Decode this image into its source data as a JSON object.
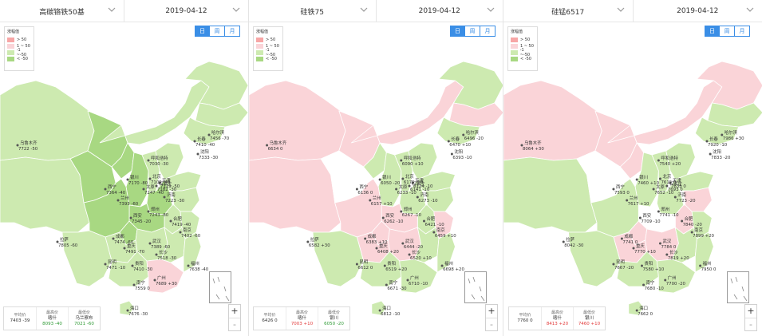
{
  "colors": {
    "gt50": "#f7a6a6",
    "p1_50": "#fad4d8",
    "n1_50": "#cdeab0",
    "lt_n50": "#a8d882",
    "none": "#ffffff",
    "accent": "#3a8ee6"
  },
  "legend": {
    "title": "涨幅值",
    "items": [
      {
        "label": "> 50",
        "color_key": "gt50"
      },
      {
        "label": "1 ~ 50",
        "color_key": "p1_50"
      },
      {
        "label": "-1 ~-50",
        "color_key": "n1_50"
      },
      {
        "label": "< -50",
        "color_key": "lt_n50"
      }
    ]
  },
  "toggle": [
    "日",
    "周",
    "月"
  ],
  "zoom": {
    "plus": "+",
    "minus": "-"
  },
  "panels": [
    {
      "product": "高碳铬铁50基",
      "date": "2019-04-12",
      "stats": {
        "avg_label": "平均价",
        "avg_value": "7403 -39",
        "high_label": "最高价",
        "high_city": "喀什",
        "high_value": "8093 -40",
        "low_label": "最低价",
        "low_value": "乌兰察布",
        "low_extra": "7021 -60"
      },
      "cities": [
        {
          "n": "乌鲁木齐",
          "v": "7722 -50"
        },
        {
          "n": "哈尔滨",
          "v": "7456 -70"
        },
        {
          "n": "长春",
          "v": "7410 -40"
        },
        {
          "n": "沈阳",
          "v": "7333 -30"
        },
        {
          "n": "呼和浩特",
          "v": "7030 -30"
        },
        {
          "n": "北京",
          "v": "7105 -40"
        },
        {
          "n": "天津",
          "v": "7119 -50"
        },
        {
          "n": "石家庄",
          "v": "7182 -30"
        },
        {
          "n": "太原",
          "v": "7247 -40"
        },
        {
          "n": "银川",
          "v": "7170 -80"
        },
        {
          "n": "西宁",
          "v": "7364 -40"
        },
        {
          "n": "兰州",
          "v": "7393 -60"
        },
        {
          "n": "济南",
          "v": "7223 -30"
        },
        {
          "n": "郑州",
          "v": "7243 -80"
        },
        {
          "n": "西安",
          "v": "7345 -20"
        },
        {
          "n": "拉萨",
          "v": "7805 -60"
        },
        {
          "n": "成都",
          "v": "7474 -60"
        },
        {
          "n": "重庆",
          "v": "7491 -70"
        },
        {
          "n": "武汉",
          "v": "7389 -60"
        },
        {
          "n": "合肥",
          "v": "7419 -40"
        },
        {
          "n": "南京",
          "v": "7402 -60"
        },
        {
          "n": "长沙",
          "v": "7518 -30"
        },
        {
          "n": "昆明",
          "v": "7471 -10"
        },
        {
          "n": "贵阳",
          "v": "7410 -30"
        },
        {
          "n": "福州",
          "v": "7638 -40"
        },
        {
          "n": "广州",
          "v": "7689 +30"
        },
        {
          "n": "南宁",
          "v": "7559 0"
        },
        {
          "n": "海口",
          "v": "7676 -30"
        }
      ]
    },
    {
      "product": "硅铁75",
      "date": "2019-04-12",
      "stats": {
        "avg_label": "平均价",
        "avg_value": "6426 0",
        "high_label": "最高价",
        "high_city": "喀什",
        "high_value": "7003 +10",
        "low_label": "最低价",
        "low_value": "银川",
        "low_extra": "6050 -20"
      },
      "cities": [
        {
          "n": "乌鲁木齐",
          "v": "6634 0"
        },
        {
          "n": "哈尔滨",
          "v": "6496 -20"
        },
        {
          "n": "长春",
          "v": "6470 +10"
        },
        {
          "n": "沈阳",
          "v": "6393 -10"
        },
        {
          "n": "呼和浩特",
          "v": "6090 +10"
        },
        {
          "n": "北京",
          "v": "6175 -10"
        },
        {
          "n": "天津",
          "v": "6124 -10"
        },
        {
          "n": "石家庄",
          "v": "6141 -10"
        },
        {
          "n": "太原",
          "v": "6233 -10"
        },
        {
          "n": "银川",
          "v": "6050 -20"
        },
        {
          "n": "西宁",
          "v": "6136 0"
        },
        {
          "n": "兰州",
          "v": "6157 +10"
        },
        {
          "n": "济南",
          "v": "6273 -10"
        },
        {
          "n": "郑州",
          "v": "6267 -10"
        },
        {
          "n": "西安",
          "v": "6262 -10"
        },
        {
          "n": "拉萨",
          "v": "6582 +30"
        },
        {
          "n": "成都",
          "v": "6383 +10"
        },
        {
          "n": "重庆",
          "v": "6408 +20"
        },
        {
          "n": "武汉",
          "v": "6444 -20"
        },
        {
          "n": "合肥",
          "v": "6421 -10"
        },
        {
          "n": "南京",
          "v": "6459 +10"
        },
        {
          "n": "长沙",
          "v": "6520 +10"
        },
        {
          "n": "昆明",
          "v": "6612 0"
        },
        {
          "n": "贵阳",
          "v": "6519 +20"
        },
        {
          "n": "福州",
          "v": "6698 +20"
        },
        {
          "n": "广州",
          "v": "6710 -10"
        },
        {
          "n": "南宁",
          "v": "6671 -30"
        },
        {
          "n": "海口",
          "v": "6812 -10"
        }
      ]
    },
    {
      "product": "硅锰6517",
      "date": "2019-04-12",
      "stats": {
        "avg_label": "平均价",
        "avg_value": "7760 0",
        "high_label": "最高价",
        "high_city": "喀什",
        "high_value": "8413 +20",
        "low_label": "最低价",
        "low_value": "银川",
        "low_extra": "7460 +10"
      },
      "cities": [
        {
          "n": "乌鲁木齐",
          "v": "8064 +30"
        },
        {
          "n": "哈尔滨",
          "v": "7986 +30"
        },
        {
          "n": "长春",
          "v": "7920 -10"
        },
        {
          "n": "沈阳",
          "v": "7833 -20"
        },
        {
          "n": "呼和浩特",
          "v": "7540 +20"
        },
        {
          "n": "北京",
          "v": "7615 0"
        },
        {
          "n": "天津",
          "v": "7635 0"
        },
        {
          "n": "石家庄",
          "v": "7693 0"
        },
        {
          "n": "太原",
          "v": "7652 -10"
        },
        {
          "n": "银川",
          "v": "7460 +10"
        },
        {
          "n": "西宁",
          "v": "7593 0"
        },
        {
          "n": "兰州",
          "v": "7617 +10"
        },
        {
          "n": "济南",
          "v": "7723 -20"
        },
        {
          "n": "郑州",
          "v": "7741 -10"
        },
        {
          "n": "西安",
          "v": "7709 -10"
        },
        {
          "n": "拉萨",
          "v": "8042 -30"
        },
        {
          "n": "成都",
          "v": "7741 0"
        },
        {
          "n": "重庆",
          "v": "7770 +10"
        },
        {
          "n": "武汉",
          "v": "7784 0"
        },
        {
          "n": "合肥",
          "v": "7840 -20"
        },
        {
          "n": "南京",
          "v": "7899 +20"
        },
        {
          "n": "长沙",
          "v": "7819 +20"
        },
        {
          "n": "昆明",
          "v": "7667 -20"
        },
        {
          "n": "贵阳",
          "v": "7580 +10"
        },
        {
          "n": "福州",
          "v": "7950 0"
        },
        {
          "n": "广州",
          "v": "7700 -20"
        },
        {
          "n": "南宁",
          "v": "7680 -10"
        },
        {
          "n": "海口",
          "v": "7662 0"
        }
      ]
    }
  ]
}
